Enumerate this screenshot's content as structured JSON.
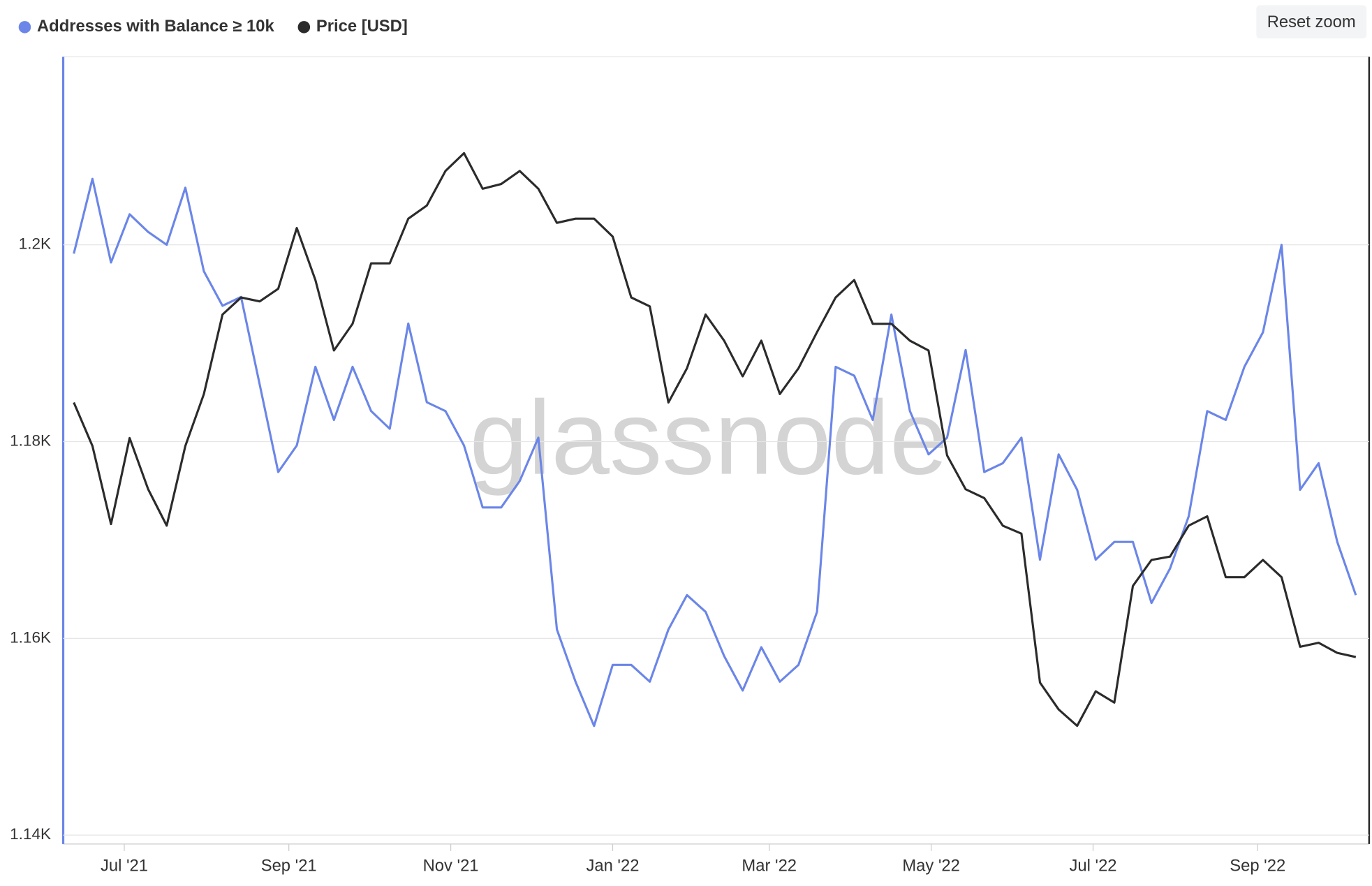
{
  "chart_data": {
    "type": "line",
    "watermark": "glassnode",
    "reset_button": "Reset zoom",
    "x": [
      "2021-06-12",
      "2021-06-19",
      "2021-06-26",
      "2021-07-03",
      "2021-07-10",
      "2021-07-17",
      "2021-07-24",
      "2021-07-31",
      "2021-08-07",
      "2021-08-14",
      "2021-08-21",
      "2021-08-28",
      "2021-09-04",
      "2021-09-11",
      "2021-09-18",
      "2021-09-25",
      "2021-10-02",
      "2021-10-09",
      "2021-10-16",
      "2021-10-23",
      "2021-10-30",
      "2021-11-06",
      "2021-11-13",
      "2021-11-20",
      "2021-11-27",
      "2021-12-04",
      "2021-12-11",
      "2021-12-18",
      "2021-12-25",
      "2022-01-01",
      "2022-01-08",
      "2022-01-15",
      "2022-01-22",
      "2022-01-29",
      "2022-02-05",
      "2022-02-12",
      "2022-02-19",
      "2022-02-26",
      "2022-03-05",
      "2022-03-12",
      "2022-03-19",
      "2022-03-26",
      "2022-04-02",
      "2022-04-09",
      "2022-04-16",
      "2022-04-23",
      "2022-04-30",
      "2022-05-07",
      "2022-05-14",
      "2022-05-21",
      "2022-05-28",
      "2022-06-04",
      "2022-06-11",
      "2022-06-18",
      "2022-06-25",
      "2022-07-02",
      "2022-07-09",
      "2022-07-16",
      "2022-07-23",
      "2022-07-30",
      "2022-08-06",
      "2022-08-13",
      "2022-08-20",
      "2022-08-27",
      "2022-09-03",
      "2022-09-10",
      "2022-09-17",
      "2022-09-24",
      "2022-10-01",
      "2022-10-08"
    ],
    "series": [
      {
        "name": "Addresses with Balance ≥ 10k",
        "color": "#6b86e8",
        "axis": "y",
        "values": [
          1199.1,
          1206.7,
          1198.2,
          1203.1,
          1201.3,
          1200,
          1205.8,
          1197.3,
          1193.8,
          1194.7,
          1185.8,
          1176.9,
          1179.6,
          1187.6,
          1182.2,
          1187.6,
          1183.1,
          1181.3,
          1192.0,
          1184.0,
          1183.1,
          1179.6,
          1173.3,
          1173.3,
          1176.0,
          1180.4,
          1160.9,
          1155.6,
          1151.1,
          1157.3,
          1157.3,
          1155.6,
          1160.9,
          1164.4,
          1162.7,
          1158.2,
          1154.7,
          1159.1,
          1155.6,
          1157.3,
          1162.7,
          1187.6,
          1186.7,
          1182.2,
          1192.9,
          1183.1,
          1178.7,
          1180.4,
          1189.3,
          1176.9,
          1177.8,
          1180.4,
          1168.0,
          1178.7,
          1175.1,
          1168.0,
          1169.8,
          1169.8,
          1163.6,
          1167.1,
          1172.4,
          1183.1,
          1182.2,
          1187.6,
          1191.1,
          1200,
          1175.1,
          1177.8,
          1169.8,
          1164.4
        ]
      },
      {
        "name": "Price [USD]",
        "color": "#2b2b2b",
        "axis": "y2",
        "values": [
          39600,
          36200,
          30800,
          36800,
          33100,
          30700,
          36200,
          40300,
          47500,
          49200,
          48800,
          50100,
          56800,
          51000,
          44100,
          46600,
          52800,
          52800,
          57900,
          59500,
          63900,
          66300,
          61600,
          62200,
          63900,
          61600,
          57400,
          57900,
          57900,
          55800,
          49200,
          48300,
          39600,
          42500,
          47500,
          45000,
          41800,
          45000,
          40300,
          42500,
          45800,
          49200,
          51000,
          46600,
          46600,
          45000,
          44100,
          35500,
          33100,
          32500,
          30700,
          30200,
          22200,
          21000,
          20300,
          21800,
          21300,
          27100,
          28600,
          28800,
          30700,
          31300,
          27600,
          27600,
          28600,
          27600,
          23900,
          24100,
          23600,
          23400
        ]
      }
    ],
    "xlim": [
      "2021-06-08",
      "2022-10-13"
    ],
    "xticks": [
      {
        "value": "2021-07-01",
        "label": "Jul '21"
      },
      {
        "value": "2021-09-01",
        "label": "Sep '21"
      },
      {
        "value": "2021-11-01",
        "label": "Nov '21"
      },
      {
        "value": "2022-01-01",
        "label": "Jan '22"
      },
      {
        "value": "2022-03-01",
        "label": "Mar '22"
      },
      {
        "value": "2022-05-01",
        "label": "May '22"
      },
      {
        "value": "2022-07-01",
        "label": "Jul '22"
      },
      {
        "value": "2022-09-01",
        "label": "Sep '22"
      }
    ],
    "ylim": [
      1139.1,
      1219.1
    ],
    "yticks": [
      {
        "value": 1140,
        "label": "1.14K"
      },
      {
        "value": 1160,
        "label": "1.16K"
      },
      {
        "value": 1180,
        "label": "1.18K"
      },
      {
        "value": 1200,
        "label": "1.2K"
      }
    ],
    "y2lim": [
      15900,
      80900
    ],
    "y2scale": "log",
    "grid": true
  }
}
